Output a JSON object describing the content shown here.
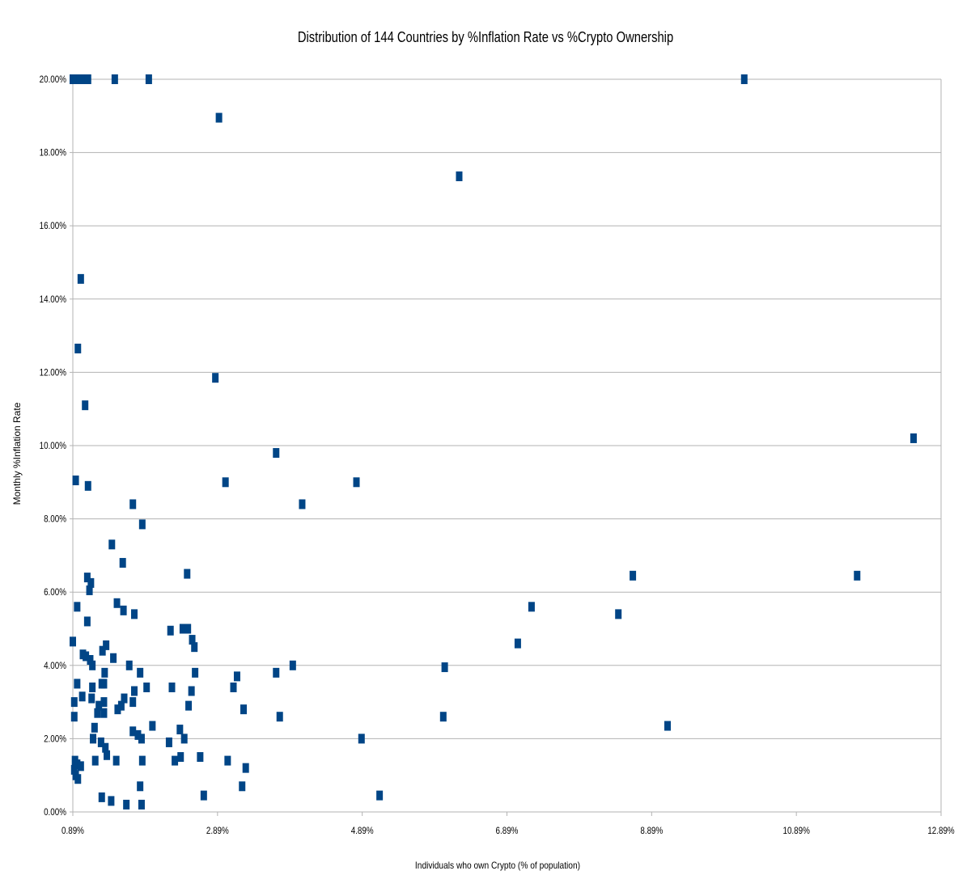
{
  "chart_data": {
    "type": "scatter",
    "title": "Distribution of 144 Countries by %Inflation Rate vs %Crypto Ownership",
    "xlabel": "Individuals who own Crypto (% of population)",
    "ylabel": "Monthly %Inflation Rate",
    "xlim": [
      0.89,
      12.89
    ],
    "ylim": [
      0,
      20
    ],
    "x_ticks": [
      "0.89%",
      "2.89%",
      "4.89%",
      "6.89%",
      "8.89%",
      "10.89%",
      "12.89%"
    ],
    "y_ticks": [
      "0.00%",
      "2.00%",
      "4.00%",
      "6.00%",
      "8.00%",
      "10.00%",
      "12.00%",
      "14.00%",
      "16.00%",
      "18.00%",
      "20.00%"
    ],
    "grid": true,
    "marker_color": "#004586",
    "points": [
      [
        0.89,
        20
      ],
      [
        0.93,
        20
      ],
      [
        0.98,
        20
      ],
      [
        1.02,
        20
      ],
      [
        1.07,
        20
      ],
      [
        1.1,
        20
      ],
      [
        1.47,
        20
      ],
      [
        1.94,
        20
      ],
      [
        2.91,
        18.95
      ],
      [
        10.17,
        20
      ],
      [
        6.23,
        17.35
      ],
      [
        1.0,
        14.55
      ],
      [
        0.96,
        12.65
      ],
      [
        2.86,
        11.85
      ],
      [
        1.06,
        11.1
      ],
      [
        12.51,
        10.2
      ],
      [
        3.7,
        9.8
      ],
      [
        0.93,
        9.05
      ],
      [
        1.1,
        8.9
      ],
      [
        3.0,
        9.0
      ],
      [
        4.81,
        9.0
      ],
      [
        4.06,
        8.4
      ],
      [
        1.72,
        8.4
      ],
      [
        1.85,
        7.85
      ],
      [
        1.43,
        7.3
      ],
      [
        1.58,
        6.8
      ],
      [
        2.47,
        6.5
      ],
      [
        1.09,
        6.4
      ],
      [
        1.14,
        6.25
      ],
      [
        1.12,
        6.05
      ],
      [
        8.63,
        6.45
      ],
      [
        11.73,
        6.45
      ],
      [
        0.95,
        5.6
      ],
      [
        1.5,
        5.7
      ],
      [
        1.59,
        5.5
      ],
      [
        1.74,
        5.4
      ],
      [
        1.09,
        5.2
      ],
      [
        7.23,
        5.6
      ],
      [
        8.43,
        5.4
      ],
      [
        2.24,
        4.95
      ],
      [
        2.41,
        5.0
      ],
      [
        2.45,
        5.0
      ],
      [
        2.48,
        5.0
      ],
      [
        2.54,
        4.7
      ],
      [
        2.57,
        4.5
      ],
      [
        7.04,
        4.6
      ],
      [
        0.89,
        4.65
      ],
      [
        1.45,
        4.2
      ],
      [
        1.35,
        4.55
      ],
      [
        1.3,
        4.4
      ],
      [
        1.03,
        4.3
      ],
      [
        1.07,
        4.25
      ],
      [
        1.13,
        4.15
      ],
      [
        1.16,
        4.0
      ],
      [
        1.67,
        4.0
      ],
      [
        1.33,
        3.8
      ],
      [
        1.82,
        3.8
      ],
      [
        2.58,
        3.8
      ],
      [
        3.7,
        3.8
      ],
      [
        3.93,
        4.0
      ],
      [
        6.03,
        3.95
      ],
      [
        3.16,
        3.7
      ],
      [
        1.29,
        3.5
      ],
      [
        1.32,
        3.5
      ],
      [
        0.95,
        3.5
      ],
      [
        1.16,
        3.4
      ],
      [
        2.26,
        3.4
      ],
      [
        1.91,
        3.4
      ],
      [
        3.11,
        3.4
      ],
      [
        1.74,
        3.3
      ],
      [
        2.53,
        3.3
      ],
      [
        1.6,
        3.1
      ],
      [
        1.02,
        3.15
      ],
      [
        1.15,
        3.1
      ],
      [
        1.32,
        3.0
      ],
      [
        1.72,
        3.0
      ],
      [
        0.91,
        3.0
      ],
      [
        1.25,
        2.9
      ],
      [
        1.56,
        2.9
      ],
      [
        1.51,
        2.8
      ],
      [
        2.49,
        2.9
      ],
      [
        3.25,
        2.8
      ],
      [
        1.23,
        2.7
      ],
      [
        1.32,
        2.7
      ],
      [
        0.91,
        2.6
      ],
      [
        3.75,
        2.6
      ],
      [
        6.01,
        2.6
      ],
      [
        9.11,
        2.35
      ],
      [
        1.99,
        2.35
      ],
      [
        1.19,
        2.3
      ],
      [
        1.72,
        2.2
      ],
      [
        1.79,
        2.1
      ],
      [
        2.37,
        2.25
      ],
      [
        1.84,
        2.0
      ],
      [
        1.17,
        2.0
      ],
      [
        1.28,
        1.9
      ],
      [
        2.22,
        1.9
      ],
      [
        2.43,
        2.0
      ],
      [
        4.88,
        2.0
      ],
      [
        1.34,
        1.75
      ],
      [
        1.36,
        1.55
      ],
      [
        1.2,
        1.4
      ],
      [
        1.49,
        1.4
      ],
      [
        1.85,
        1.4
      ],
      [
        2.3,
        1.4
      ],
      [
        2.38,
        1.5
      ],
      [
        2.65,
        1.5
      ],
      [
        3.03,
        1.4
      ],
      [
        3.28,
        1.2
      ],
      [
        0.92,
        1.4
      ],
      [
        0.95,
        1.3
      ],
      [
        1.0,
        1.25
      ],
      [
        0.91,
        1.15
      ],
      [
        0.93,
        1.0
      ],
      [
        0.96,
        0.9
      ],
      [
        1.82,
        0.7
      ],
      [
        3.23,
        0.7
      ],
      [
        2.7,
        0.45
      ],
      [
        5.13,
        0.45
      ],
      [
        1.29,
        0.4
      ],
      [
        1.42,
        0.3
      ],
      [
        1.63,
        0.2
      ],
      [
        1.84,
        0.2
      ]
    ]
  }
}
